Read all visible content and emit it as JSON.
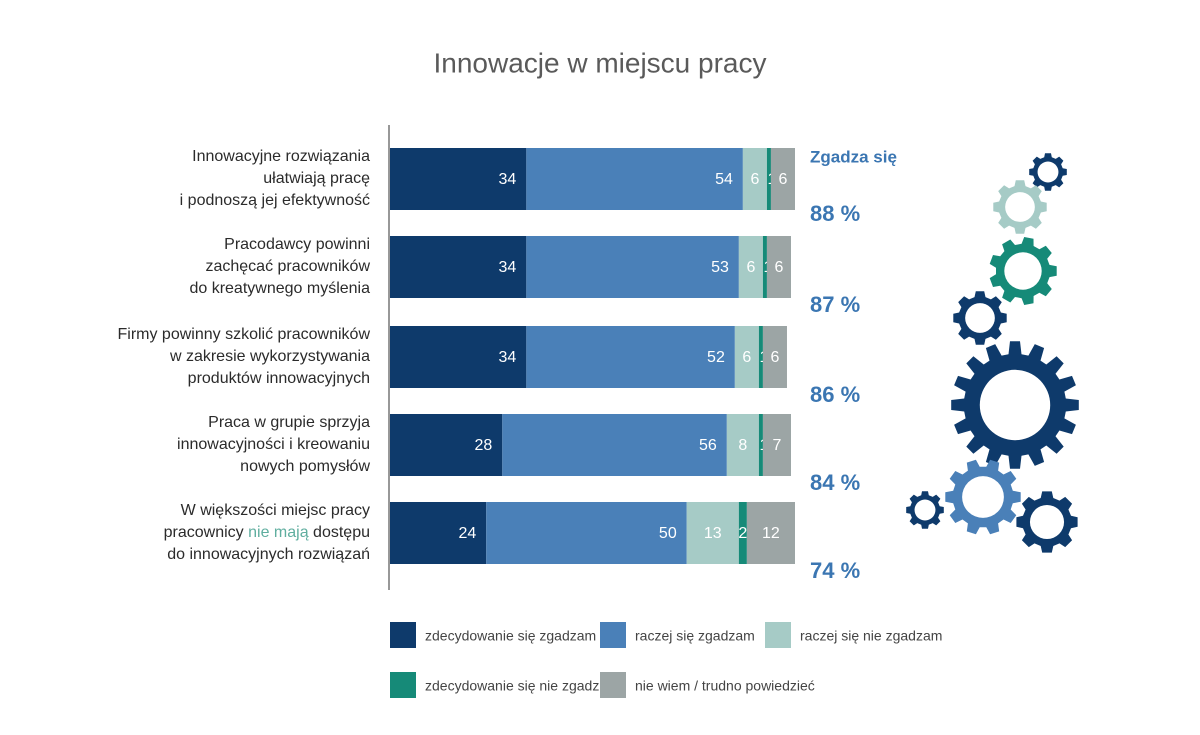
{
  "chart_data": {
    "type": "stacked-bar-horizontal",
    "title": "Innowacje w miejscu pracy",
    "categories": [
      [
        "Innowacyjne rozwiązania",
        "ułatwiają pracę",
        "i podnoszą jej efektywność"
      ],
      [
        "Pracodawcy powinni",
        "zachęcać pracowników",
        "do kreatywnego myślenia"
      ],
      [
        "Firmy powinny szkolić pracowników",
        "w zakresie wykorzystywania",
        "produktów innowacyjnych"
      ],
      [
        "Praca w grupie sprzyja",
        "innowacyjności i kreowaniu",
        "nowych pomysłów"
      ],
      [
        "W większości miejsc pracy",
        [
          "pracownicy ",
          "nie mają",
          " dostępu"
        ],
        "do innowacyjnych rozwiązań"
      ]
    ],
    "emphasis_color": "#5fae9f",
    "series": [
      {
        "name": "zdecydowanie się zgadzam",
        "color": "#0e3a6b",
        "values": [
          34,
          34,
          34,
          28,
          24
        ]
      },
      {
        "name": "raczej się zgadzam",
        "color": "#4a80b8",
        "values": [
          54,
          53,
          52,
          56,
          50
        ]
      },
      {
        "name": "raczej się nie zgadzam",
        "color": "#a6cbc6",
        "values": [
          6,
          6,
          6,
          8,
          13
        ]
      },
      {
        "name": "zdecydowanie się nie zgadzam",
        "color": "#168a78",
        "values": [
          1,
          1,
          1,
          1,
          2
        ]
      },
      {
        "name": "nie wiem / trudno powiedzieć",
        "color": "#9ca5a5",
        "values": [
          6,
          6,
          6,
          7,
          12
        ]
      }
    ],
    "xlim": [
      0,
      101
    ],
    "agree": {
      "title": "Zgadza się",
      "values": [
        88,
        87,
        86,
        84,
        74
      ],
      "value_labels": [
        "88 %",
        "87 %",
        "86 %",
        "84 %",
        "74 %"
      ],
      "color": "#3b76b2"
    }
  }
}
